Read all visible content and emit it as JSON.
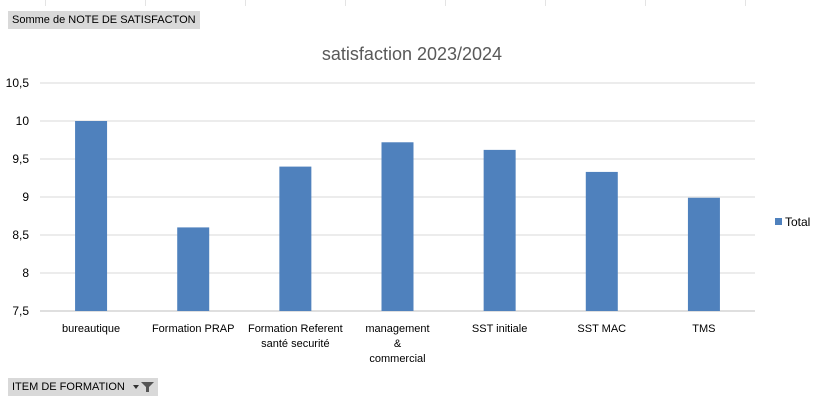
{
  "pivot": {
    "value_field_label": "Somme  de NOTE DE SATISFACTON",
    "axis_field_label": "ITEM DE FORMATION"
  },
  "chart_data": {
    "type": "bar",
    "title": "satisfaction 2023/2024",
    "categories": [
      [
        "bureautique"
      ],
      [
        "Formation PRAP"
      ],
      [
        "Formation Referent",
        "santé securité"
      ],
      [
        "management",
        "&",
        "commercial"
      ],
      [
        "SST initiale"
      ],
      [
        "SST MAC"
      ],
      [
        "TMS"
      ]
    ],
    "series": [
      {
        "name": "Total",
        "values": [
          10.0,
          8.6,
          9.4,
          9.72,
          9.62,
          9.33,
          8.99
        ],
        "color": "#4f81bd"
      }
    ],
    "yticks": [
      "7,5",
      "8",
      "8,5",
      "9",
      "9,5",
      "10",
      "10,5"
    ],
    "ylim": [
      7.5,
      10.5
    ],
    "grid": true,
    "legend_position": "right"
  }
}
